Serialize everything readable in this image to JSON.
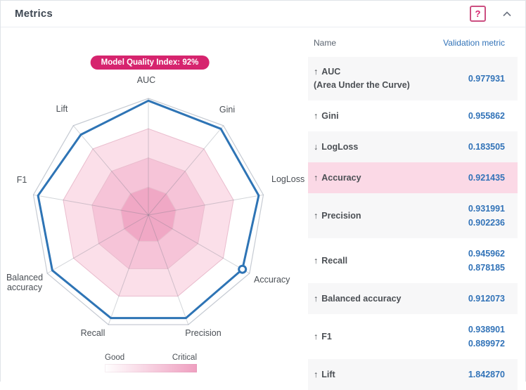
{
  "header": {
    "title": "Metrics",
    "help_label": "?"
  },
  "badge": {
    "text": "Model Quality Index: 92%"
  },
  "legend": {
    "left": "Good",
    "right": "Critical"
  },
  "colors": {
    "accent_pink": "#d6246e",
    "series_blue": "#2e74b5",
    "highlight_row": "#fbd9e6",
    "legend_gradient": [
      "#ffffff",
      "#ef9fc0"
    ]
  },
  "chart_data": {
    "type": "radar",
    "title": "Model Quality Index: 92%",
    "axes": [
      "AUC",
      "Gini",
      "LogLoss",
      "Accuracy",
      "Precision",
      "Recall",
      "Balanced accuracy",
      "F1",
      "Lift"
    ],
    "scale": [
      0,
      1
    ],
    "zone_fractions": [
      0.74,
      0.49,
      0.24
    ],
    "zone_colors": [
      "#fbdfe9",
      "#f6c4d8",
      "#f0a8c5"
    ],
    "series": [
      {
        "name": "Validation metric",
        "color": "#2e74b5",
        "values": [
          0.98,
          0.965,
          0.96,
          0.93,
          0.94,
          0.94,
          0.95,
          0.96,
          0.9
        ]
      }
    ],
    "marker_axis": "Accuracy",
    "legend": {
      "left": "Good",
      "right": "Critical",
      "position": "bottom"
    }
  },
  "table": {
    "columns": [
      "Name",
      "Validation metric"
    ],
    "rows": [
      {
        "arrow": "↑",
        "name": "AUC",
        "subname": "(Area Under the Curve)",
        "values": [
          "0.977931"
        ],
        "highlight": false
      },
      {
        "arrow": "↑",
        "name": "Gini",
        "values": [
          "0.955862"
        ],
        "highlight": false
      },
      {
        "arrow": "↓",
        "name": "LogLoss",
        "values": [
          "0.183505"
        ],
        "highlight": false
      },
      {
        "arrow": "↑",
        "name": "Accuracy",
        "values": [
          "0.921435"
        ],
        "highlight": true
      },
      {
        "arrow": "↑",
        "name": "Precision",
        "values": [
          "0.931991",
          "0.902236"
        ],
        "highlight": false
      },
      {
        "arrow": "↑",
        "name": "Recall",
        "values": [
          "0.945962",
          "0.878185"
        ],
        "highlight": false
      },
      {
        "arrow": "↑",
        "name": "Balanced accuracy",
        "values": [
          "0.912073"
        ],
        "highlight": false
      },
      {
        "arrow": "↑",
        "name": "F1",
        "values": [
          "0.938901",
          "0.889972"
        ],
        "highlight": false
      },
      {
        "arrow": "↑",
        "name": "Lift",
        "values": [
          "1.842870"
        ],
        "highlight": false
      }
    ]
  }
}
